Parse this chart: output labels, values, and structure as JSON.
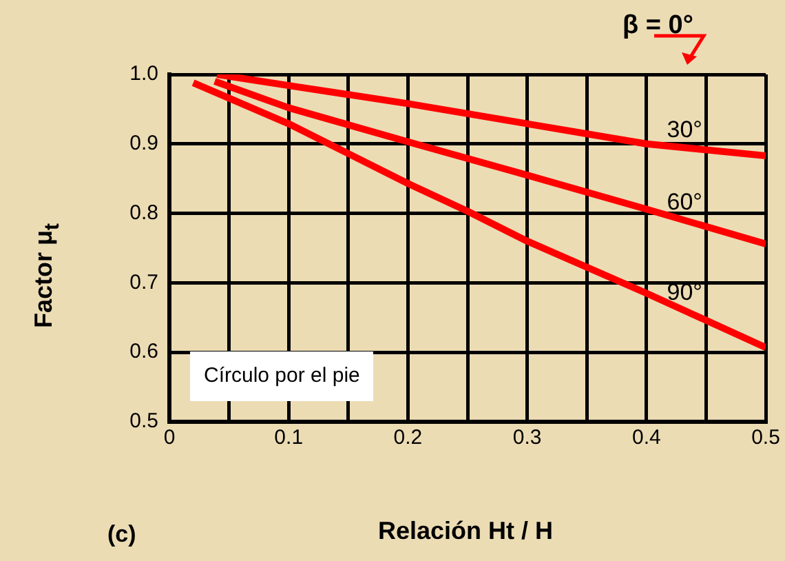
{
  "chart_data": {
    "type": "line",
    "xlabel": "Relación Ht / H",
    "ylabel": "Factor  μ$_{t}$",
    "annotations": [
      "β = 0°",
      "Círculo por el pie",
      "(c)"
    ],
    "series": [
      {
        "name": "30°",
        "color": "#ff0000",
        "x": [
          0.04,
          0.1,
          0.2,
          0.3,
          0.4,
          0.5
        ],
        "values": [
          1.0,
          0.984,
          0.958,
          0.929,
          0.9,
          0.883
        ]
      },
      {
        "name": "60°",
        "color": "#ff0000",
        "x": [
          0.038,
          0.1,
          0.2,
          0.3,
          0.4,
          0.5
        ],
        "values": [
          0.99,
          0.952,
          0.903,
          0.855,
          0.806,
          0.756
        ]
      },
      {
        "name": "90°",
        "color": "#ff0000",
        "x": [
          0.02,
          0.1,
          0.2,
          0.25,
          0.3,
          0.4,
          0.5
        ],
        "values": [
          0.988,
          0.929,
          0.843,
          0.803,
          0.76,
          0.685,
          0.607
        ]
      }
    ],
    "xlim": [
      0,
      0.5
    ],
    "xticks": [
      0,
      {
        "value": 0.05,
        "label": null
      },
      0.1,
      {
        "value": 0.15,
        "label": null
      },
      0.2,
      {
        "value": 0.25,
        "label": null
      },
      0.3,
      {
        "value": 0.35,
        "label": null
      },
      0.4,
      {
        "value": 0.45,
        "label": null
      },
      0.5
    ],
    "ylim": [
      0.5,
      1.0
    ],
    "yticks": [
      {
        "value": 0.5,
        "label": "0.5"
      },
      0.6,
      0.7,
      0.8,
      0.9,
      {
        "value": 1.0,
        "label": "1.0"
      }
    ],
    "grid": true,
    "legend": false,
    "marker": "none",
    "line_style": "solid"
  }
}
